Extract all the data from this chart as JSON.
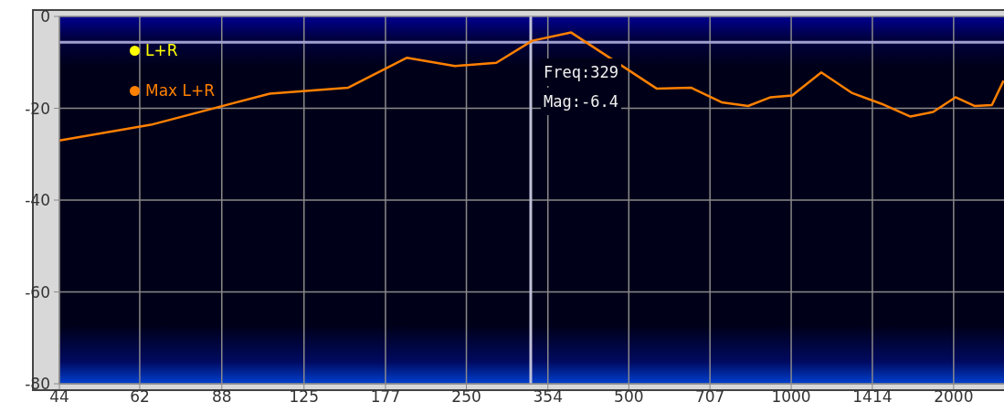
{
  "chart_data": {
    "type": "line",
    "x": [
      44,
      65,
      108,
      151,
      194,
      238,
      284,
      331,
      391,
      563,
      652,
      743,
      832,
      916,
      1004,
      1137,
      1298,
      1468,
      1664,
      1833,
      2016,
      2186,
      2355,
      2475
    ],
    "series": [
      {
        "name": "L+R",
        "color": "#ffff00",
        "values": [
          null,
          null,
          null,
          null,
          null,
          null,
          null,
          null,
          null,
          null,
          null,
          null,
          null,
          null,
          null,
          null,
          null,
          null,
          null,
          null,
          null,
          null,
          null,
          null
        ]
      },
      {
        "name": "Max L+R",
        "color": "#ff8000",
        "values": [
          -27,
          -23.6,
          -16.8,
          -15.5,
          -9,
          -10.8,
          -10.1,
          -5.3,
          -3.5,
          -15.7,
          -15.5,
          -18.7,
          -19.5,
          -17.6,
          -17.2,
          -12.2,
          -16.7,
          -19,
          -21.8,
          -20.8,
          -17.6,
          -19.5,
          -19.3,
          -14
        ]
      }
    ],
    "log": "x",
    "xlim": [
      44,
      2480
    ],
    "xticks": [
      44,
      62,
      88,
      125,
      177,
      250,
      354,
      500,
      707,
      1000,
      1414,
      2000
    ],
    "ylim": [
      -80,
      0
    ],
    "yticks": [
      -80,
      -60,
      -40,
      -20,
      0
    ],
    "grid": true,
    "legend": "top left",
    "marker": "none",
    "line_style": "solid",
    "ref_lines": [
      {
        "axis": "y",
        "value": -5.6,
        "color": "#a0a0d0"
      },
      {
        "axis": "x",
        "value": 329,
        "color": "#c0c0d8"
      }
    ],
    "annotations": [
      "Freq:329",
      "Mag:-6.4"
    ]
  }
}
